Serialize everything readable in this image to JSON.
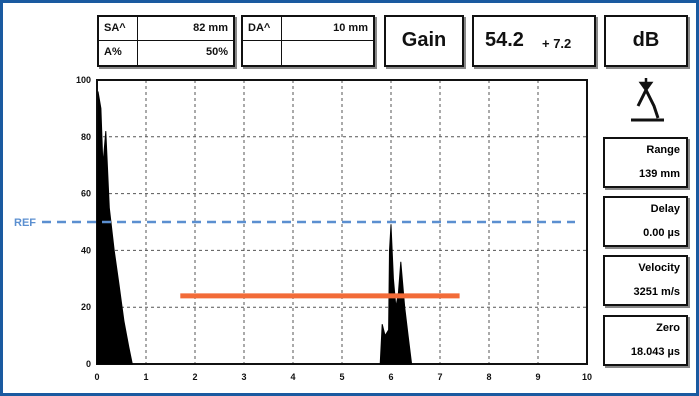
{
  "params": {
    "sa_label": "SA^",
    "sa_value": "82 mm",
    "a_label": "A%",
    "a_value": "50%",
    "da_label": "DA^",
    "da_value": "10 mm"
  },
  "gain": {
    "label": "Gain",
    "value": "54.2",
    "step": "+ 7.2",
    "unit": "dB"
  },
  "side_panel": [
    {
      "label": "Range",
      "value": "139 mm"
    },
    {
      "label": "Delay",
      "value": "0.00 µs"
    },
    {
      "label": "Velocity",
      "value": "3251 m/s"
    },
    {
      "label": "Zero",
      "value": "18.043 µs"
    }
  ],
  "colors": {
    "frame": "#1a5aa0",
    "ref_line": "#5b8fd0",
    "gate": "#f26b38",
    "signal": "#000000"
  },
  "icon": "probe-angle-icon",
  "chart_data": {
    "type": "area",
    "x_ticks": [
      "0",
      "1",
      "2",
      "3",
      "4",
      "5",
      "6",
      "7",
      "8",
      "9",
      "10"
    ],
    "y_ticks": [
      "0",
      "20",
      "40",
      "60",
      "80",
      "100"
    ],
    "xlim": [
      0,
      10
    ],
    "ylim": [
      0,
      100
    ],
    "grid": true,
    "ref": {
      "label": "REF",
      "y": 50
    },
    "gate": {
      "x_start": 1.7,
      "x_end": 7.4,
      "y": 24
    },
    "series": [
      {
        "x": [
          0,
          0.02,
          0.08,
          0.12,
          0.18,
          0.25,
          0.35,
          0.45,
          0.55,
          0.65,
          0.72
        ],
        "y": [
          0,
          96,
          90,
          70,
          82,
          55,
          40,
          28,
          15,
          6,
          0
        ]
      },
      {
        "x": [
          5.78,
          5.82,
          5.88,
          5.95,
          5.97,
          6.0,
          6.05,
          6.1,
          6.15,
          6.2,
          6.28,
          6.35,
          6.42
        ],
        "y": [
          0,
          14,
          10,
          12,
          40,
          49,
          30,
          20,
          25,
          36,
          20,
          10,
          0
        ]
      }
    ]
  }
}
